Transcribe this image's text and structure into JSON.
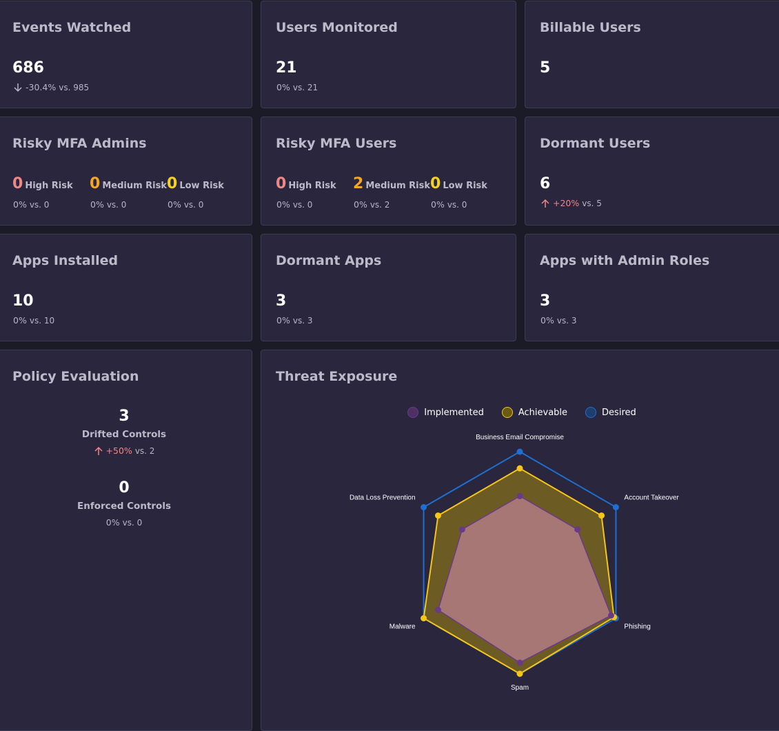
{
  "cards": {
    "events_watched": {
      "title": "Events Watched",
      "value": "686",
      "delta": "-30.4%",
      "vs": "vs. 985"
    },
    "users_monitored": {
      "title": "Users Monitored",
      "value": "21",
      "delta": "0%",
      "vs": "vs. 21"
    },
    "billable_users": {
      "title": "Billable Users",
      "value": "5"
    },
    "risky_mfa_admins": {
      "title": "Risky MFA Admins",
      "high": {
        "value": "0",
        "label": "High Risk",
        "delta": "0%",
        "vs": "vs. 0"
      },
      "medium": {
        "value": "0",
        "label": "Medium Risk",
        "delta": "0%",
        "vs": "vs. 0"
      },
      "low": {
        "value": "0",
        "label": "Low Risk",
        "delta": "0%",
        "vs": "vs. 0"
      }
    },
    "risky_mfa_users": {
      "title": "Risky MFA Users",
      "high": {
        "value": "0",
        "label": "High Risk",
        "delta": "0%",
        "vs": "vs. 0"
      },
      "medium": {
        "value": "2",
        "label": "Medium Risk",
        "delta": "0%",
        "vs": "vs. 2"
      },
      "low": {
        "value": "0",
        "label": "Low Risk",
        "delta": "0%",
        "vs": "vs. 0"
      }
    },
    "dormant_users": {
      "title": "Dormant Users",
      "value": "6",
      "delta": "+20%",
      "vs": "vs. 5"
    },
    "apps_installed": {
      "title": "Apps Installed",
      "value": "10",
      "delta": "0%",
      "vs": "vs. 10"
    },
    "dormant_apps": {
      "title": "Dormant Apps",
      "value": "3",
      "delta": "0%",
      "vs": "vs. 3"
    },
    "apps_admin_roles": {
      "title": "Apps with Admin Roles",
      "value": "3",
      "delta": "0%",
      "vs": "vs. 3"
    },
    "policy_evaluation": {
      "title": "Policy Evaluation",
      "drifted": {
        "value": "3",
        "label": "Drifted Controls",
        "delta": "+50%",
        "vs": "vs. 2"
      },
      "enforced": {
        "value": "0",
        "label": "Enforced Controls",
        "delta": "0%",
        "vs": "vs. 0"
      }
    },
    "threat_exposure": {
      "title": "Threat Exposure"
    }
  },
  "colors": {
    "high_risk": "#f08787",
    "medium_risk": "#f5a623",
    "low_risk": "#f5d020",
    "increase": "#f08787"
  },
  "chart_data": {
    "type": "radar",
    "title": "Threat Exposure",
    "categories": [
      "Business Email Compromise",
      "Account Takeover",
      "Phishing",
      "Spam",
      "Malware",
      "Data Loss Prevention"
    ],
    "range": [
      0,
      10
    ],
    "series": [
      {
        "name": "Desired",
        "values": [
          10,
          10,
          10,
          10,
          10,
          10
        ],
        "color": "#1f6fd1"
      },
      {
        "name": "Achievable",
        "values": [
          8.5,
          8.5,
          9.8,
          10,
          10,
          8.5
        ],
        "color": "#f5c518"
      },
      {
        "name": "Implemented",
        "values": [
          6,
          6,
          9.5,
          9,
          8.5,
          6
        ],
        "color": "#6a3a8a"
      }
    ]
  }
}
